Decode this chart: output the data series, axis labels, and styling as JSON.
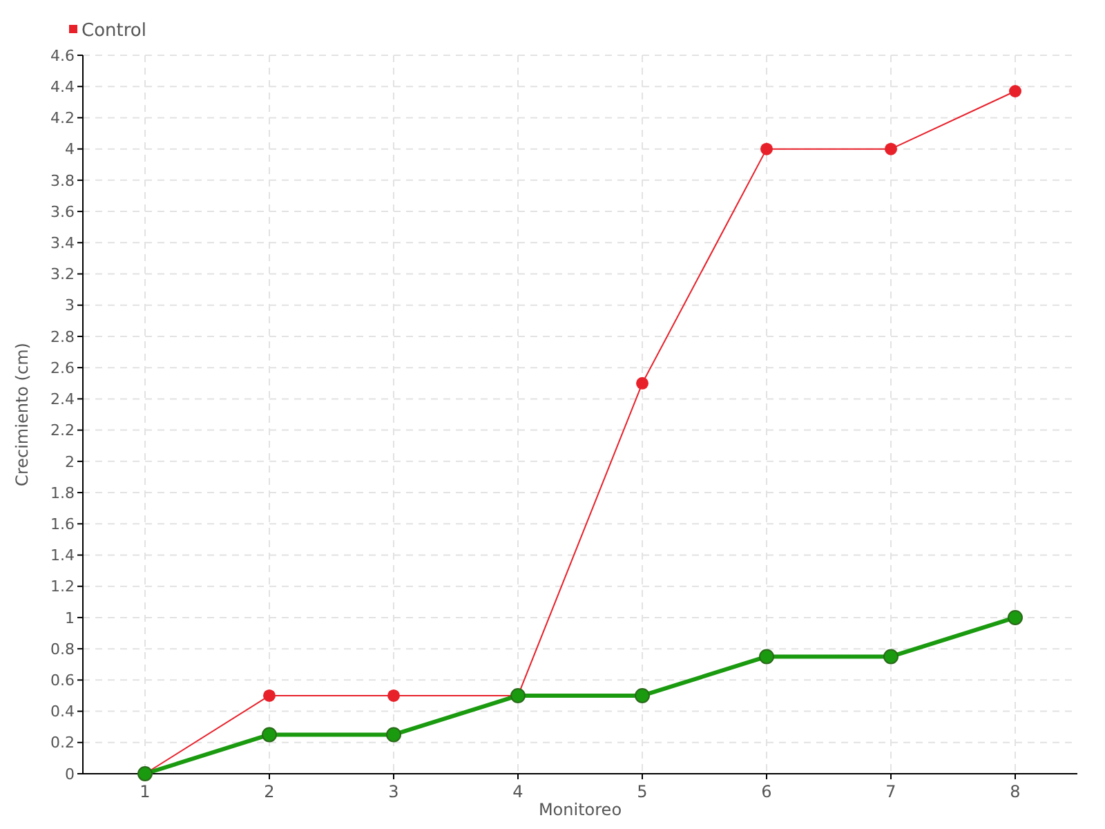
{
  "chart_data": {
    "type": "line",
    "xlabel": "Monitoreo",
    "ylabel": "Crecimiento (cm)",
    "categories": [
      "1",
      "2",
      "3",
      "4",
      "5",
      "6",
      "7",
      "8"
    ],
    "series": [
      {
        "color": "#1a9a0f",
        "values": [
          0,
          0.25,
          0.25,
          0.5,
          0.5,
          0.75,
          0.75,
          1.0
        ]
      },
      {
        "name": "Control",
        "color": "#e8202a",
        "values": [
          0,
          0.5,
          0.5,
          0.5,
          2.5,
          4,
          4,
          4.37
        ]
      }
    ],
    "ylim": [
      0,
      4.6
    ],
    "yticks": [
      0,
      0.2,
      0.4,
      0.6,
      0.8,
      1,
      1.2,
      1.4,
      1.6,
      1.8,
      2,
      2.2,
      2.4,
      2.6,
      2.8,
      3,
      3.2,
      3.4,
      3.6,
      3.8,
      4,
      4.2,
      4.4,
      4.6
    ],
    "grid": true,
    "legend": "top left",
    "marker": "circle"
  }
}
